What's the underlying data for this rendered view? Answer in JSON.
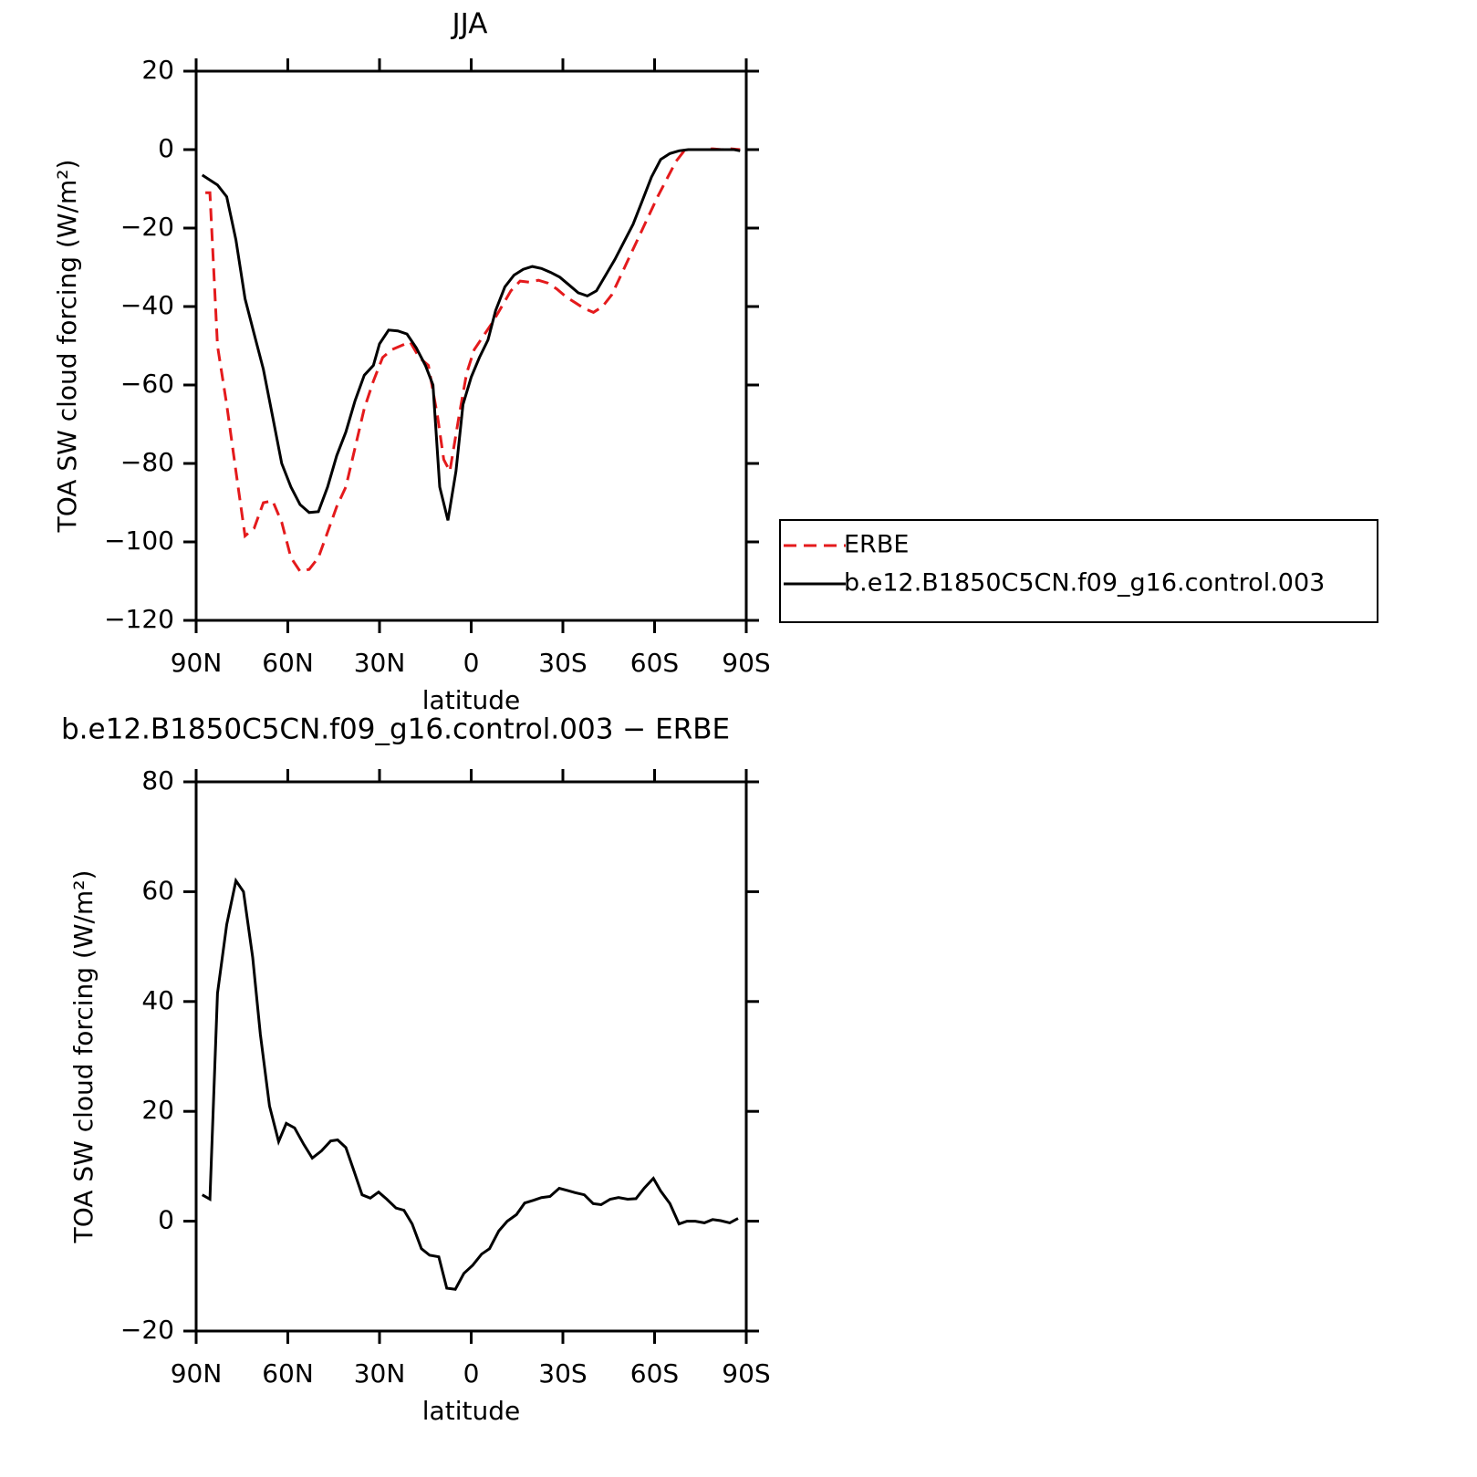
{
  "chart_data": [
    {
      "type": "line",
      "title": "JJA",
      "xlabel": "latitude",
      "ylabel": "TOA SW cloud forcing (W/m²)",
      "xlim": [
        90,
        -90
      ],
      "xticks": [
        {
          "value": 90,
          "label": "90N"
        },
        {
          "value": 60,
          "label": "60N"
        },
        {
          "value": 30,
          "label": "30N"
        },
        0,
        {
          "value": -30,
          "label": "30S"
        },
        {
          "value": -60,
          "label": "60S"
        },
        {
          "value": -90,
          "label": "90S"
        }
      ],
      "ylim": [
        -120,
        20
      ],
      "yticks": [
        20,
        0,
        -20,
        -40,
        -60,
        -80,
        -100,
        -120
      ],
      "legend": "outside-right",
      "series": [
        {
          "name": "ERBE",
          "color": "#e41a1c",
          "dash": true,
          "x": [
            87,
            85.5,
            83,
            80,
            77,
            74,
            71,
            68,
            65,
            62,
            59,
            56,
            53,
            50,
            47,
            44,
            41,
            38,
            35,
            32,
            29,
            26,
            23,
            20,
            17,
            14,
            11,
            9,
            7,
            4,
            1.5,
            -1,
            -4,
            -7,
            -10,
            -13,
            -16,
            -19,
            -22,
            -25,
            -28,
            -31,
            -34,
            -37,
            -40,
            -43,
            -46,
            -49,
            -52,
            -55,
            -58,
            -61,
            -64,
            -67,
            -70,
            -73,
            -76,
            -79,
            -82,
            -85,
            -88
          ],
          "values": [
            -11,
            -11,
            -50,
            -65,
            -82,
            -98.5,
            -96.5,
            -90,
            -89.5,
            -95,
            -104,
            -107.5,
            -107,
            -104,
            -97.5,
            -91,
            -86,
            -76,
            -66,
            -59,
            -53,
            -51,
            -50,
            -49,
            -53,
            -55,
            -68,
            -79,
            -82,
            -68,
            -57,
            -51,
            -47.5,
            -44,
            -40,
            -36,
            -33.5,
            -33.8,
            -33.3,
            -34,
            -35.5,
            -37.5,
            -39,
            -40.5,
            -41.5,
            -40,
            -37,
            -32,
            -27,
            -22,
            -17,
            -12,
            -7.5,
            -3,
            0,
            0,
            0,
            0.2,
            0,
            0.2,
            0
          ]
        },
        {
          "name": "b.e12.B1850C5CN.f09_g16.control.003",
          "color": "#000000",
          "dash": false,
          "x": [
            88,
            86,
            83,
            80,
            77,
            74,
            71,
            68,
            65,
            62,
            59,
            56,
            53,
            50,
            47,
            44,
            41,
            38,
            35,
            32,
            30,
            27,
            24,
            21,
            18,
            15,
            12.5,
            10.3,
            7.6,
            5,
            2.7,
            0,
            -2.7,
            -5.5,
            -8,
            -11,
            -14,
            -17,
            -20,
            -23,
            -26,
            -29,
            -32,
            -35,
            -38,
            -41,
            -44,
            -47,
            -50,
            -53,
            -56,
            -59,
            -62,
            -65,
            -68,
            -71,
            -74,
            -77,
            -80,
            -83,
            -86,
            -88
          ],
          "values": [
            -6.5,
            -7.5,
            -9,
            -12,
            -23,
            -38,
            -47,
            -56,
            -68,
            -80,
            -86,
            -90.5,
            -92.5,
            -92.3,
            -86,
            -78,
            -72,
            -64,
            -57.5,
            -55,
            -49.5,
            -46,
            -46.2,
            -47,
            -50.5,
            -55,
            -60,
            -86,
            -94.5,
            -82,
            -65,
            -58,
            -53,
            -48.5,
            -41,
            -35,
            -32,
            -30.5,
            -29.8,
            -30.3,
            -31.3,
            -32.5,
            -34.5,
            -36.5,
            -37.3,
            -36,
            -32,
            -28,
            -23.5,
            -19,
            -13,
            -7,
            -2.5,
            -1,
            -0.3,
            0,
            0,
            0,
            0,
            0,
            0,
            -0.3
          ]
        }
      ]
    },
    {
      "type": "line",
      "title": "b.e12.B1850C5CN.f09_g16.control.003 − ERBE",
      "xlabel": "latitude",
      "ylabel": "TOA SW cloud forcing (W/m²)",
      "xlim": [
        90,
        -90
      ],
      "xticks": [
        {
          "value": 90,
          "label": "90N"
        },
        {
          "value": 60,
          "label": "60N"
        },
        {
          "value": 30,
          "label": "30N"
        },
        0,
        {
          "value": -30,
          "label": "30S"
        },
        {
          "value": -60,
          "label": "60S"
        },
        {
          "value": -90,
          "label": "90S"
        }
      ],
      "ylim": [
        -20,
        80
      ],
      "yticks": [
        80,
        60,
        40,
        20,
        0,
        -20
      ],
      "series": [
        {
          "color": "#000000",
          "dash": false,
          "x": [
            88,
            85.5,
            83,
            80,
            77,
            74.5,
            71.5,
            69,
            66,
            63,
            60.5,
            57.8,
            54.8,
            52,
            49,
            46,
            43.7,
            41,
            38.4,
            35.7,
            33,
            30.3,
            27.6,
            24.6,
            22,
            19.3,
            16.3,
            13.6,
            10.6,
            8,
            5.2,
            2.4,
            -0.5,
            -3.4,
            -6,
            -9,
            -11.8,
            -14.8,
            -17.5,
            -20.4,
            -23,
            -25.8,
            -28.8,
            -31.5,
            -34,
            -37,
            -39.9,
            -42.5,
            -45.5,
            -48.2,
            -51.2,
            -53.9,
            -56.6,
            -59.6,
            -62,
            -65,
            -68,
            -70.6,
            -73.3,
            -76.3,
            -79,
            -81.6,
            -84.6,
            -87.3
          ],
          "values": [
            4.8,
            4,
            41.5,
            54,
            62,
            60,
            48,
            34,
            21,
            14.5,
            17.8,
            17,
            14,
            11.5,
            12.8,
            14.6,
            14.8,
            13.4,
            9.2,
            4.8,
            4.2,
            5.3,
            4,
            2.4,
            2,
            -0.5,
            -5,
            -6.2,
            -6.5,
            -12.2,
            -12.4,
            -9.5,
            -8,
            -6,
            -5,
            -1.8,
            0,
            1.2,
            3.3,
            3.8,
            4.3,
            4.5,
            6,
            5.6,
            5.2,
            4.8,
            3.2,
            3,
            4,
            4.3,
            4,
            4.1,
            6,
            7.8,
            5.5,
            3.2,
            -0.5,
            0,
            0,
            -0.3,
            0.3,
            0.1,
            -0.3,
            0.5
          ]
        }
      ]
    }
  ]
}
